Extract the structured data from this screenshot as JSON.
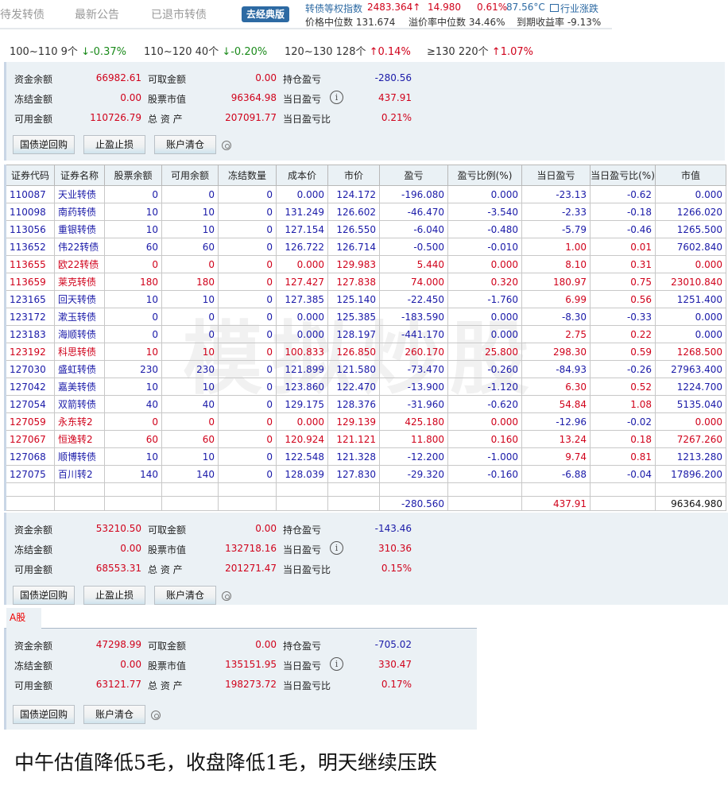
{
  "nav": {
    "tabs": [
      "待发转债",
      "最新公告",
      "已退市转债"
    ],
    "classic_button": "去经典版"
  },
  "index": {
    "label": "转债等权指数",
    "value": "2483.364↑",
    "change": "14.980",
    "change_pct": "0.61%",
    "temperature": "87.56°C",
    "industry_link": "行业涨跌",
    "median_price": "价格中位数 131.674",
    "median_premium": "溢价率中位数 34.46%",
    "ytm": "到期收益率 -9.13%"
  },
  "ranges": [
    {
      "label": "100~110 9个",
      "change": "↓-0.37%",
      "trend": "down"
    },
    {
      "label": "110~120 40个",
      "change": "↓-0.20%",
      "trend": "down"
    },
    {
      "label": "120~130 128个",
      "change": "↑0.14%",
      "trend": "up"
    },
    {
      "label": "≥130 220个",
      "change": "↑1.07%",
      "trend": "up"
    }
  ],
  "labels": {
    "cash": "资金余额",
    "withdrawable": "可取金额",
    "position_pl": "持仓盈亏",
    "frozen": "冻结金额",
    "market_value": "股票市值",
    "daily_pl": "当日盈亏",
    "available": "可用金额",
    "total_assets": "总 资 产",
    "daily_pl_ratio": "当日盈亏比",
    "info": "i",
    "btn_repo": "国债逆回购",
    "btn_stop": "止盈止损",
    "btn_clear": "账户清仓"
  },
  "account1": {
    "cash": "66982.61",
    "withdrawable": "0.00",
    "position_pl": "-280.56",
    "frozen": "0.00",
    "market_value": "96364.98",
    "daily_pl": "437.91",
    "available": "110726.79",
    "total_assets": "207091.77",
    "daily_pl_ratio": "0.21%"
  },
  "account2": {
    "cash": "53210.50",
    "withdrawable": "0.00",
    "position_pl": "-143.46",
    "frozen": "0.00",
    "market_value": "132718.16",
    "daily_pl": "310.36",
    "available": "68553.31",
    "total_assets": "201271.47",
    "daily_pl_ratio": "0.15%"
  },
  "account3": {
    "tab": "A股",
    "cash": "47298.99",
    "withdrawable": "0.00",
    "position_pl": "-705.02",
    "frozen": "0.00",
    "market_value": "135151.95",
    "daily_pl": "330.47",
    "available": "63121.77",
    "total_assets": "198273.72",
    "daily_pl_ratio": "0.17%"
  },
  "table": {
    "columns": [
      "证券代码",
      "证券名称",
      "股票余额",
      "可用余额",
      "冻结数量",
      "成本价",
      "市价",
      "盈亏",
      "盈亏比例(%)",
      "当日盈亏",
      "当日盈亏比(%)",
      "市值"
    ],
    "rows": [
      {
        "color": "blue",
        "cells": [
          "110087",
          "天业转债",
          "0",
          "0",
          "0",
          "0.000",
          "124.172",
          "-196.080",
          "0.000",
          "-23.13",
          "-0.62",
          "0.000"
        ]
      },
      {
        "color": "blue",
        "cells": [
          "110098",
          "南药转债",
          "10",
          "10",
          "0",
          "131.249",
          "126.602",
          "-46.470",
          "-3.540",
          "-2.33",
          "-0.18",
          "1266.020"
        ]
      },
      {
        "color": "blue",
        "cells": [
          "113056",
          "重银转债",
          "10",
          "10",
          "0",
          "127.154",
          "126.550",
          "-6.040",
          "-0.480",
          "-5.79",
          "-0.46",
          "1265.500"
        ]
      },
      {
        "color": "blue",
        "cells": [
          "113652",
          "伟22转债",
          "60",
          "60",
          "0",
          "126.722",
          "126.714",
          "-0.500",
          "-0.010",
          "1.00",
          "0.01",
          "7602.840"
        ]
      },
      {
        "color": "red",
        "cells": [
          "113655",
          "欧22转债",
          "0",
          "0",
          "0",
          "0.000",
          "129.983",
          "5.440",
          "0.000",
          "8.10",
          "0.31",
          "0.000"
        ]
      },
      {
        "color": "red",
        "cells": [
          "113659",
          "莱克转债",
          "180",
          "180",
          "0",
          "127.427",
          "127.838",
          "74.000",
          "0.320",
          "180.97",
          "0.75",
          "23010.840"
        ]
      },
      {
        "color": "blue",
        "cells": [
          "123165",
          "回天转债",
          "10",
          "10",
          "0",
          "127.385",
          "125.140",
          "-22.450",
          "-1.760",
          "6.99",
          "0.56",
          "1251.400"
        ]
      },
      {
        "color": "blue",
        "cells": [
          "123172",
          "漱玉转债",
          "0",
          "0",
          "0",
          "0.000",
          "125.385",
          "-183.590",
          "0.000",
          "-8.30",
          "-0.33",
          "0.000"
        ]
      },
      {
        "color": "blue",
        "cells": [
          "123183",
          "海顺转债",
          "0",
          "0",
          "0",
          "0.000",
          "128.197",
          "-441.170",
          "0.000",
          "2.75",
          "0.22",
          "0.000"
        ]
      },
      {
        "color": "red",
        "cells": [
          "123192",
          "科思转债",
          "10",
          "10",
          "0",
          "100.833",
          "126.850",
          "260.170",
          "25.800",
          "298.30",
          "0.59",
          "1268.500"
        ]
      },
      {
        "color": "blue",
        "cells": [
          "127030",
          "盛虹转债",
          "230",
          "230",
          "0",
          "121.899",
          "121.580",
          "-73.470",
          "-0.260",
          "-84.93",
          "-0.26",
          "27963.400"
        ]
      },
      {
        "color": "blue",
        "cells": [
          "127042",
          "嘉美转债",
          "10",
          "10",
          "0",
          "123.860",
          "122.470",
          "-13.900",
          "-1.120",
          "6.30",
          "0.52",
          "1224.700"
        ]
      },
      {
        "color": "blue",
        "cells": [
          "127054",
          "双箭转债",
          "40",
          "40",
          "0",
          "129.175",
          "128.376",
          "-31.960",
          "-0.620",
          "54.84",
          "1.08",
          "5135.040"
        ]
      },
      {
        "color": "red",
        "cells": [
          "127059",
          "永东转2",
          "0",
          "0",
          "0",
          "0.000",
          "129.139",
          "425.180",
          "0.000",
          "-12.96",
          "-0.02",
          "0.000"
        ]
      },
      {
        "color": "red",
        "cells": [
          "127067",
          "恒逸转2",
          "60",
          "60",
          "0",
          "120.924",
          "121.121",
          "11.800",
          "0.160",
          "13.24",
          "0.18",
          "7267.260"
        ]
      },
      {
        "color": "blue",
        "cells": [
          "127068",
          "顺博转债",
          "10",
          "10",
          "0",
          "122.548",
          "121.328",
          "-12.200",
          "-1.000",
          "9.74",
          "0.81",
          "1213.280"
        ]
      },
      {
        "color": "blue",
        "cells": [
          "127075",
          "百川转2",
          "140",
          "140",
          "0",
          "128.039",
          "127.830",
          "-29.320",
          "-0.160",
          "-6.88",
          "-0.04",
          "17896.200"
        ]
      }
    ],
    "totals": {
      "pl": "-280.560",
      "daily_pl": "437.91",
      "market_value": "96364.980"
    }
  },
  "watermark": "模拟炒股",
  "note": "中午估值降低5毛，收盘降低1毛，明天继续压跌",
  "colors": {
    "up": "#d0021b",
    "down": "#1a1aa8",
    "green": "#1a8a1a",
    "accent": "#2d6aa3",
    "panel": "#ebf1f5"
  }
}
